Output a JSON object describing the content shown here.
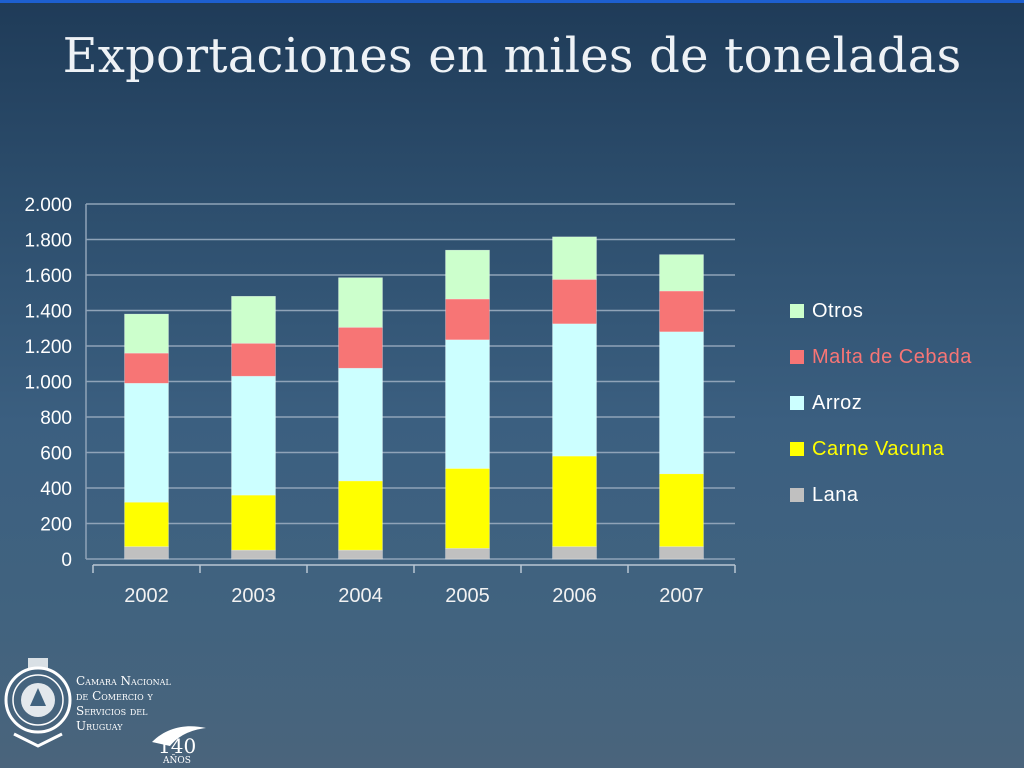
{
  "slide": {
    "title": "Exportaciones en miles de toneladas"
  },
  "footer": {
    "org_line1": "Camara Nacional",
    "org_line2": "de Comercio y",
    "org_line3": "Servicios del",
    "org_line4": "Uruguay",
    "years_number": "140",
    "years_word": "AÑOS"
  },
  "chart_data": {
    "type": "bar",
    "stacked": true,
    "categories": [
      "2002",
      "2003",
      "2004",
      "2005",
      "2006",
      "2007"
    ],
    "series": [
      {
        "name": "Lana",
        "color": "#c0c0c0",
        "values": [
          70,
          50,
          50,
          60,
          70,
          70
        ]
      },
      {
        "name": "Carne Vacuna",
        "color": "#ffff00",
        "values": [
          250,
          310,
          390,
          450,
          510,
          410
        ]
      },
      {
        "name": "Arroz",
        "color": "#ccffff",
        "values": [
          670,
          670,
          635,
          725,
          745,
          800
        ]
      },
      {
        "name": "Malta de Cebada",
        "color": "#f77575",
        "values": [
          170,
          185,
          230,
          230,
          250,
          230
        ]
      },
      {
        "name": "Otros",
        "color": "#ccffcc",
        "values": [
          220,
          265,
          280,
          275,
          240,
          205
        ]
      }
    ],
    "ylim": [
      0,
      2000
    ],
    "yticks": [
      0,
      200,
      400,
      600,
      800,
      1000,
      1200,
      1400,
      1600,
      1800,
      2000
    ],
    "ytick_labels": [
      "0",
      "200",
      "400",
      "600",
      "800",
      "1.000",
      "1.200",
      "1.400",
      "1.600",
      "1.800",
      "2.000"
    ],
    "grid": true,
    "legend_position": "right",
    "legend_order": [
      "Otros",
      "Malta de Cebada",
      "Arroz",
      "Carne Vacuna",
      "Lana"
    ]
  }
}
